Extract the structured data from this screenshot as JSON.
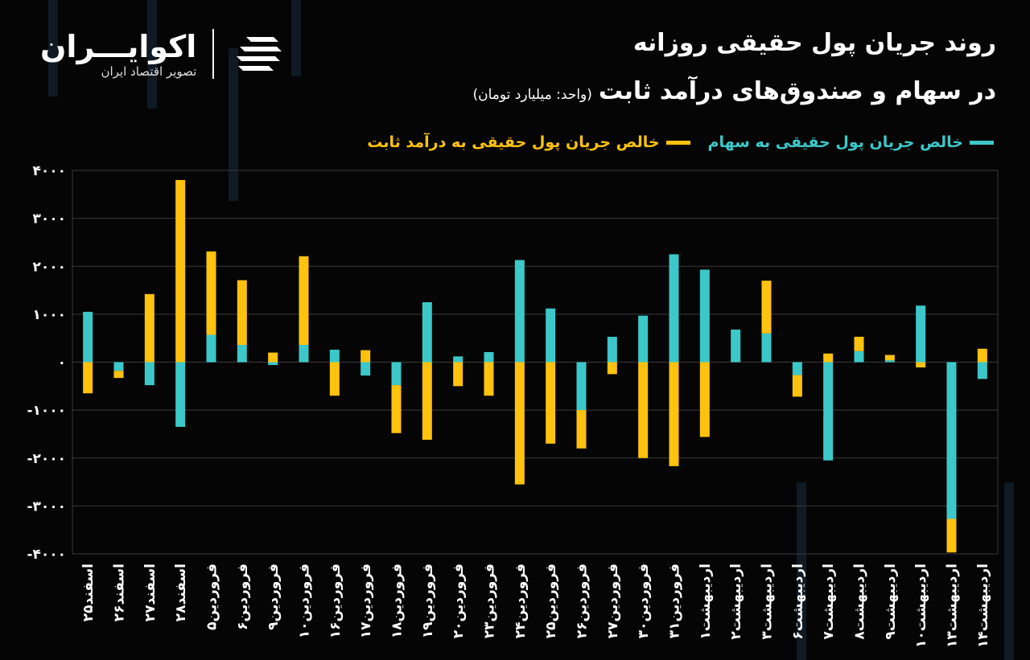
{
  "header": {
    "title_line1": "روند جریان پول حقیقی روزانه",
    "title_line2": "در سهام و صندوق‌های درآمد ثابت",
    "unit": "(واحد: میلیارد تومان)"
  },
  "brand": {
    "name": "اکوایـــران",
    "subtitle": "تصویر اقتصاد ایران",
    "logo_icon": "ecoiran-logo-icon"
  },
  "colors": {
    "background": "#050505",
    "stocks": "#3cc8c8",
    "fixed_income": "#ffc20e",
    "grid": "#3a3a3a"
  },
  "chart_data": {
    "type": "bar",
    "stacked": true,
    "categories": [
      "۲۵اسفند",
      "۲۶اسفند",
      "۲۷اسفند",
      "۲۸اسفند",
      "۵فروردین",
      "۶فروردین",
      "۹فروردین",
      "۱۰فروردین",
      "۱۶فروردین",
      "۱۷فروردین",
      "۱۸فروردین",
      "۱۹فروردین",
      "۲۰فروردین",
      "۲۳فروردین",
      "۲۴فروردین",
      "۲۵فروردین",
      "۲۶فروردین",
      "۲۷فروردین",
      "۳۰فروردین",
      "۳۱فروردین",
      "۱اردیبهشت",
      "۲اردیبهشت",
      "۳اردیبهشت",
      "۶اردیبهشت",
      "۷اردیبهشت",
      "۸اردیبهشت",
      "۹اردیبهشت",
      "۱۰اردیبهشت",
      "۱۳اردیبهشت",
      "۱۴اردیبهشت"
    ],
    "series": [
      {
        "name": "خالص جریان پول حقیقی به سهام",
        "values": [
          1050,
          -180,
          -480,
          -1350,
          570,
          360,
          -60,
          360,
          260,
          -280,
          -480,
          1250,
          120,
          210,
          2130,
          1120,
          -1000,
          530,
          970,
          2250,
          1930,
          680,
          600,
          -270,
          -2050,
          230,
          40,
          1180,
          -3270,
          -350
        ]
      },
      {
        "name": "خالص جریان پول حقیقی به درآمد ثابت",
        "values": [
          -650,
          -150,
          1420,
          3800,
          1740,
          1350,
          200,
          1850,
          -700,
          250,
          -1000,
          -1620,
          -500,
          -700,
          -2550,
          -1700,
          -800,
          -250,
          -2000,
          -2170,
          -1560,
          0,
          1100,
          -450,
          180,
          300,
          110,
          -110,
          -700,
          280
        ]
      }
    ],
    "y_ticks": [
      4000,
      3000,
      2000,
      1000,
      0,
      -1000,
      -2000,
      -3000,
      -4000
    ],
    "y_tick_labels": [
      "۴۰۰۰",
      "۳۰۰۰",
      "۲۰۰۰",
      "۱۰۰۰",
      "۰",
      "-۱۰۰۰",
      "-۲۰۰۰",
      "-۳۰۰۰",
      "-۴۰۰۰"
    ],
    "ylim": [
      -4000,
      4000
    ],
    "grid": true,
    "legend": "top-right"
  }
}
